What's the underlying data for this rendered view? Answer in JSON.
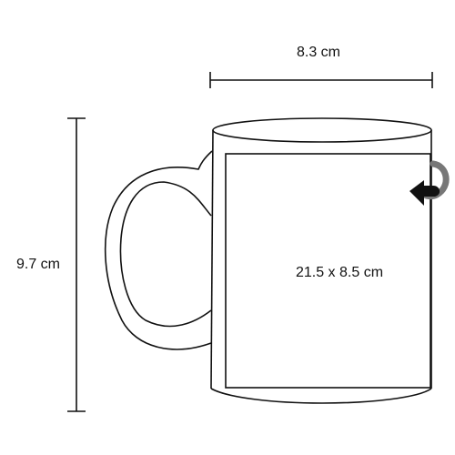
{
  "dimensions": {
    "width_label": "8.3 cm",
    "height_label": "9.7 cm",
    "print_area_label": "21.5 x 8.5 cm"
  },
  "colors": {
    "stroke": "#111111",
    "background": "#ffffff"
  },
  "icons": {
    "wrap_arrow": "curved-arrow-icon"
  }
}
